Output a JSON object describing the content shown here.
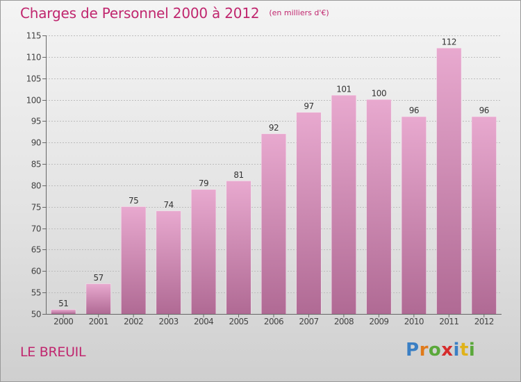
{
  "title": "Charges de Personnel 2000 à 2012",
  "unit_note": "(en milliers d'€)",
  "commune": "LE BREUIL",
  "logo": {
    "text": "Proxiti",
    "letters": [
      {
        "ch": "P",
        "color": "#3a7fc4"
      },
      {
        "ch": "r",
        "color": "#e07a1a"
      },
      {
        "ch": "o",
        "color": "#5aa83a"
      },
      {
        "ch": "x",
        "color": "#d62c2c"
      },
      {
        "ch": "i",
        "color": "#3a7fc4"
      },
      {
        "ch": "t",
        "color": "#e0b21a"
      },
      {
        "ch": "i",
        "color": "#5aa83a"
      }
    ]
  },
  "colors": {
    "accent": "#c0266e",
    "bar_top": "#e8a9cf",
    "bar_bottom": "#b06a94",
    "axis_text": "#444444"
  },
  "chart_data": {
    "type": "bar",
    "categories": [
      "2000",
      "2001",
      "2002",
      "2003",
      "2004",
      "2005",
      "2006",
      "2007",
      "2008",
      "2009",
      "2010",
      "2011",
      "2012"
    ],
    "values": [
      51,
      57,
      75,
      74,
      79,
      81,
      92,
      97,
      101,
      100,
      96,
      112,
      96
    ],
    "ylim": [
      50,
      115
    ],
    "yticks": [
      50,
      55,
      60,
      65,
      70,
      75,
      80,
      85,
      90,
      95,
      100,
      105,
      110,
      115
    ],
    "xlabel": "",
    "ylabel": "",
    "grid": true,
    "data_labels": true
  }
}
